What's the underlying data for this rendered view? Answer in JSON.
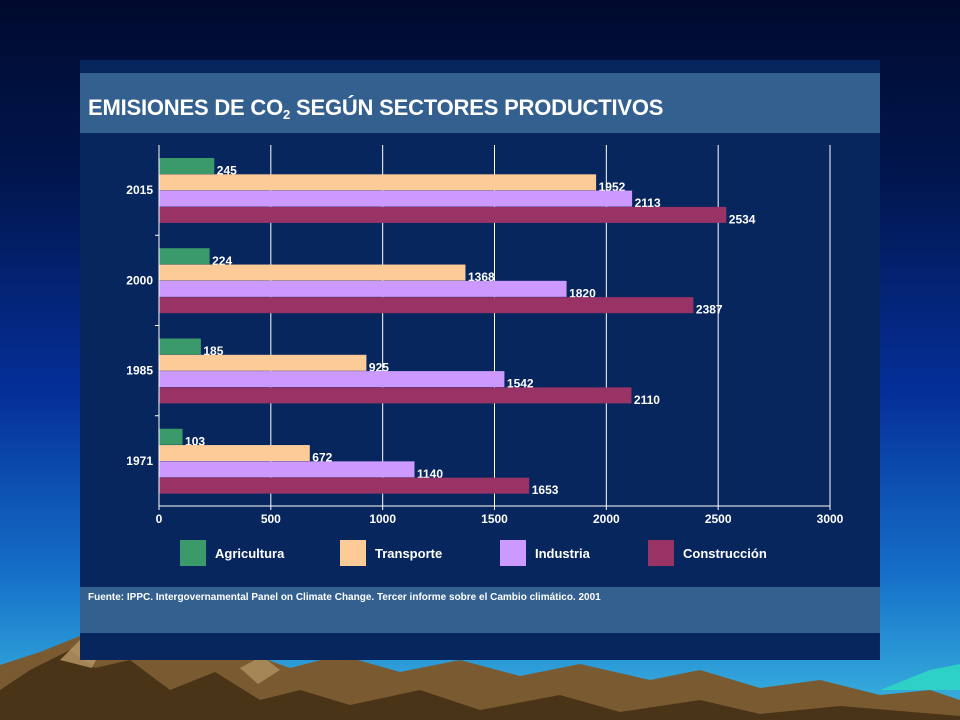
{
  "slide": {
    "title_main": "EMISIONES DE CO",
    "title_sub": "2",
    "title_rest": " SEGÚN SECTORES PRODUCTIVOS",
    "source": "Fuente: IPPC. Intergovernamental Panel on Climate Change. Tercer informe sobre el Cambio climático. 2001"
  },
  "colors": {
    "panel": "#08265e",
    "band": "#33608f",
    "Agricultura": "#3a9a6a",
    "Transporte": "#fccb98",
    "Industria": "#cc99ff",
    "Construcción": "#993366"
  },
  "chart_data": {
    "type": "bar",
    "orientation": "horizontal",
    "categories": [
      "2015",
      "2000",
      "1985",
      "1971"
    ],
    "series": [
      {
        "name": "Agricultura",
        "values": [
          245,
          224,
          185,
          103
        ]
      },
      {
        "name": "Transporte",
        "values": [
          1952,
          1368,
          925,
          672
        ]
      },
      {
        "name": "Industria",
        "values": [
          2113,
          1820,
          1542,
          1140
        ]
      },
      {
        "name": "Construcción",
        "values": [
          2534,
          2387,
          2110,
          1653
        ]
      }
    ],
    "xlim": [
      0,
      3000
    ],
    "xticks": [
      "0",
      "500",
      "1000",
      "1500",
      "2000",
      "2500",
      "3000"
    ],
    "grid": "vertical",
    "legend": "bottom"
  }
}
